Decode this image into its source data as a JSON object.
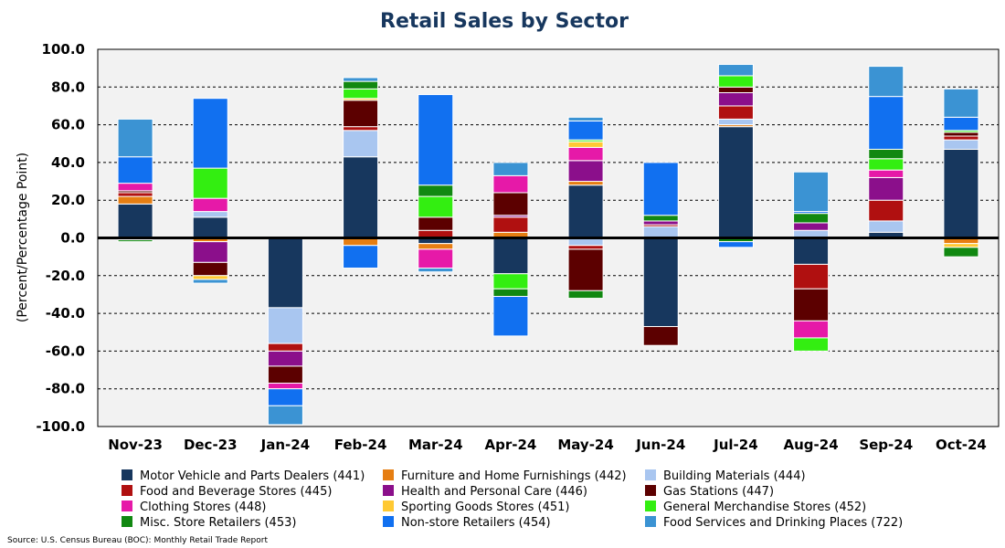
{
  "chart_data": {
    "type": "bar",
    "stacked": true,
    "title": "Retail Sales by Sector",
    "ylabel": "(Percent/Percentage Point)",
    "ylim": [
      -100,
      100
    ],
    "yticks": [
      -100,
      -80,
      -60,
      -40,
      -20,
      0,
      20,
      40,
      60,
      80,
      100
    ],
    "ytick_labels": [
      "-100.0",
      "-80.0",
      "-60.0",
      "-40.0",
      "-20.0",
      "0.0",
      "20.0",
      "40.0",
      "60.0",
      "80.0",
      "100.0"
    ],
    "grid": "horizontal dashed",
    "legend_position": "bottom",
    "source": "Source: U.S. Census Bureau (BOC): Monthly Retail Trade Report",
    "categories": [
      "Nov-23",
      "Dec-23",
      "Jan-24",
      "Feb-24",
      "Mar-24",
      "Apr-24",
      "May-24",
      "Jun-24",
      "Jul-24",
      "Aug-24",
      "Sep-24",
      "Oct-24"
    ],
    "series": [
      {
        "name": "Motor Vehicle and Parts Dealers (441)",
        "color": "#17375e",
        "values": [
          18,
          11,
          -37,
          43,
          -3,
          -19,
          28,
          -47,
          59,
          -14,
          3,
          47
        ]
      },
      {
        "name": "Furniture and Home Furnishings (442)",
        "color": "#e67e12",
        "values": [
          4,
          -2,
          0,
          -4,
          -3,
          3,
          2,
          0,
          1,
          0,
          0,
          -3
        ]
      },
      {
        "name": "Building Materials (444)",
        "color": "#a9c6f0",
        "values": [
          0,
          3,
          -19,
          14,
          0,
          0,
          -4,
          6,
          3,
          4,
          6,
          5
        ]
      },
      {
        "name": "Food and Beverage Stores (445)",
        "color": "#b01010",
        "values": [
          2,
          0,
          -4,
          2,
          4,
          8,
          -2,
          1,
          7,
          -13,
          11,
          2
        ]
      },
      {
        "name": "Health and Personal Care (446)",
        "color": "#8b0f8b",
        "values": [
          -1,
          -11,
          -8,
          0,
          0,
          1,
          11,
          2,
          7,
          4,
          12,
          0
        ]
      },
      {
        "name": "Gas Stations (447)",
        "color": "#5c0000",
        "values": [
          1,
          -7,
          -9,
          14,
          7,
          12,
          -22,
          -10,
          3,
          -17,
          0,
          2
        ]
      },
      {
        "name": "Clothing Stores (448)",
        "color": "#e619a8",
        "values": [
          4,
          7,
          -3,
          0,
          -10,
          9,
          7,
          0,
          0,
          -9,
          4,
          0
        ]
      },
      {
        "name": "Sporting Goods Stores (451)",
        "color": "#ffc933",
        "values": [
          0,
          -2,
          0,
          1,
          0,
          0,
          3,
          0,
          0,
          0,
          0,
          -2
        ]
      },
      {
        "name": "General Merchandise Stores (452)",
        "color": "#33ee11",
        "values": [
          0,
          16,
          0,
          5,
          11,
          -8,
          1,
          0,
          6,
          -7,
          6,
          1
        ]
      },
      {
        "name": "Misc. Store Retailers (453)",
        "color": "#118811",
        "values": [
          -1,
          0,
          0,
          4,
          6,
          -4,
          -4,
          3,
          -2,
          5,
          5,
          -5
        ]
      },
      {
        "name": "Non-store Retailers (454)",
        "color": "#1170f0",
        "values": [
          14,
          37,
          -9,
          -12,
          48,
          -21,
          10,
          28,
          -3,
          1,
          28,
          7
        ]
      },
      {
        "name": "Food Services and Drinking Places (722)",
        "color": "#3b93d3",
        "values": [
          20,
          -2,
          -10,
          2,
          -2,
          7,
          2,
          0,
          6,
          21,
          16,
          15
        ]
      }
    ]
  }
}
